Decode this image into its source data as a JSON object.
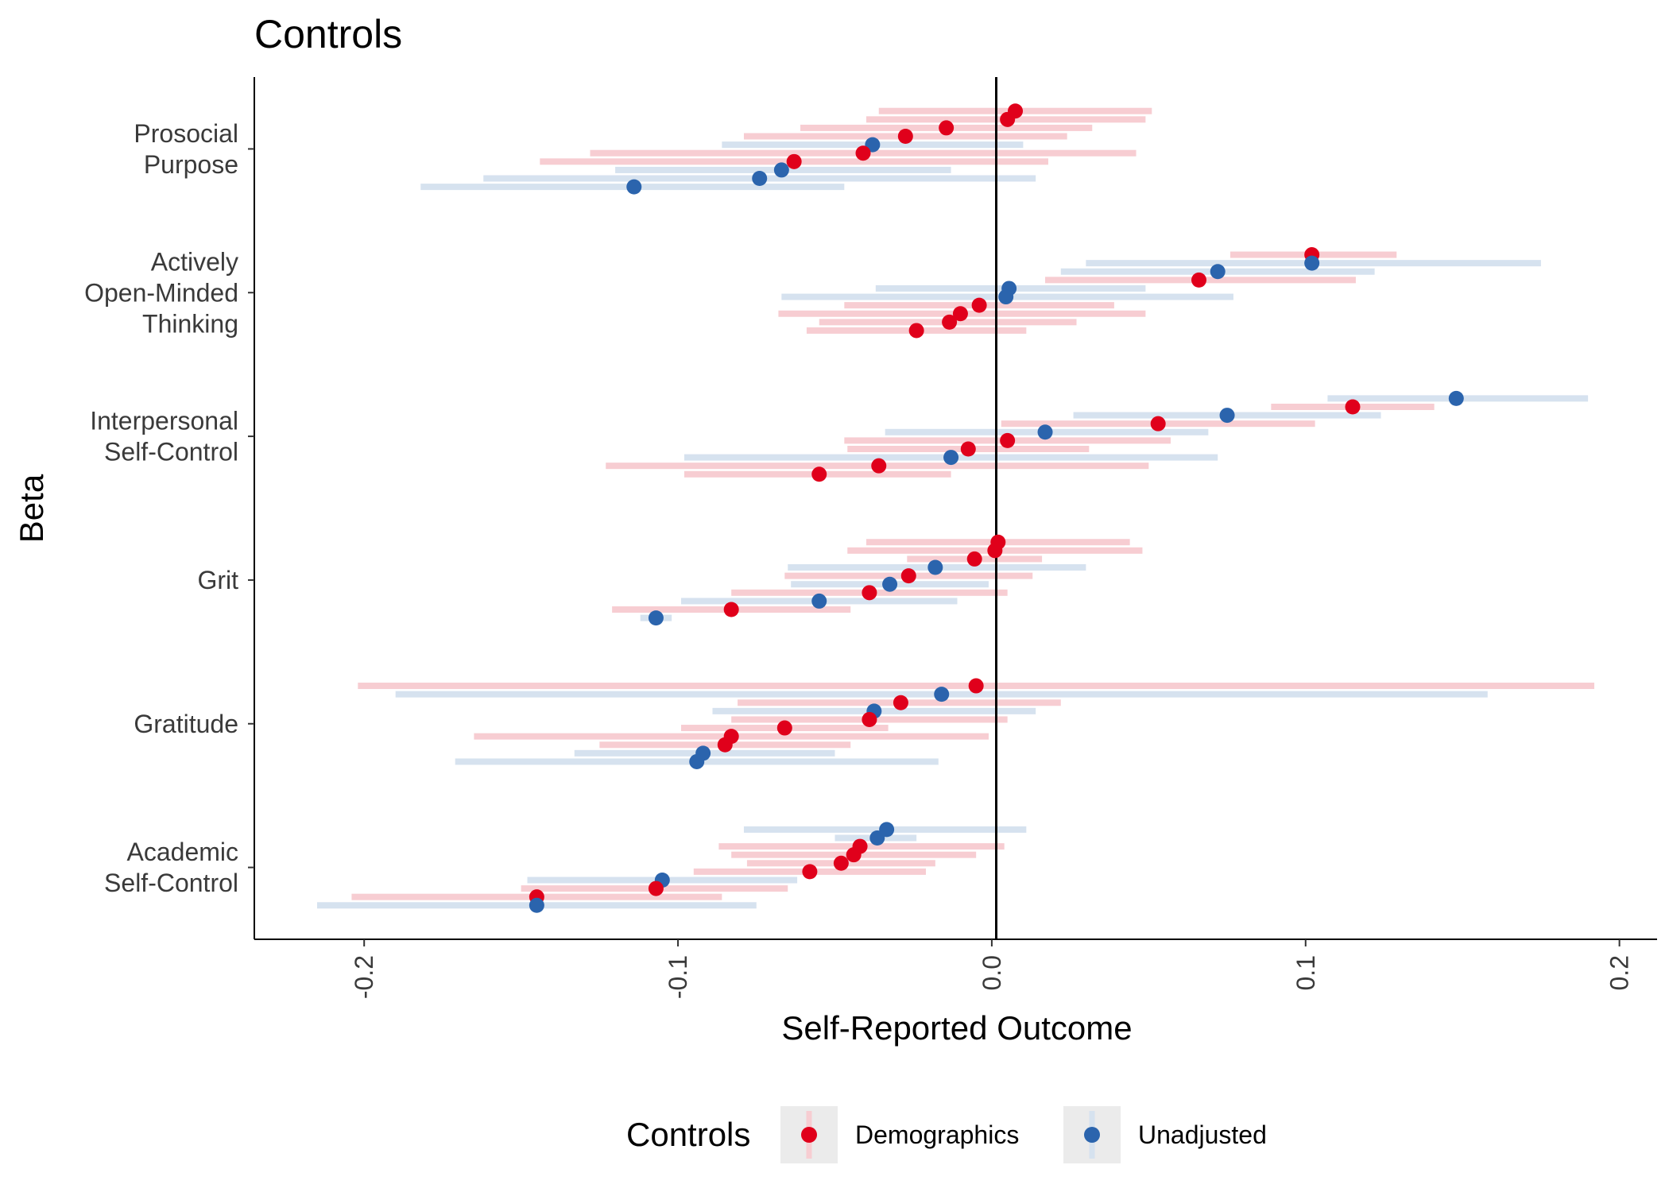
{
  "chart_data": {
    "type": "scatter",
    "title": "Controls",
    "xlabel": "Self-Reported Outcome",
    "ylabel": "Beta",
    "xlim": [
      -0.235,
      0.212
    ],
    "xticks": [
      -0.2,
      -0.1,
      0.0,
      0.1,
      0.2
    ],
    "xtick_labels": [
      "-0.2",
      "-0.1",
      "0.0",
      "0.1",
      "0.2"
    ],
    "reference_line_x": 0,
    "grid": false,
    "legend": {
      "title": "Controls",
      "placement": "bottom",
      "entries": [
        {
          "label": "Demographics",
          "point_color": "#e0001b",
          "bar_color": "#f7cdd2"
        },
        {
          "label": "Unadjusted",
          "point_color": "#2b64ad",
          "bar_color": "#d6e2ef"
        }
      ]
    },
    "categories": [
      {
        "label": [
          "Prosocial",
          "Purpose"
        ],
        "points": [
          {
            "series": "Demographics",
            "beta": 0.0075,
            "lo": -0.036,
            "hi": 0.051
          },
          {
            "series": "Demographics",
            "beta": 0.005,
            "lo": -0.04,
            "hi": 0.049
          },
          {
            "series": "Demographics",
            "beta": -0.0145,
            "lo": -0.061,
            "hi": 0.032
          },
          {
            "series": "Demographics",
            "beta": -0.0275,
            "lo": -0.079,
            "hi": 0.024
          },
          {
            "series": "Unadjusted",
            "beta": -0.038,
            "lo": -0.086,
            "hi": 0.01
          },
          {
            "series": "Demographics",
            "beta": -0.041,
            "lo": -0.128,
            "hi": 0.046
          },
          {
            "series": "Demographics",
            "beta": -0.063,
            "lo": -0.144,
            "hi": 0.018
          },
          {
            "series": "Unadjusted",
            "beta": -0.067,
            "lo": -0.12,
            "hi": -0.013
          },
          {
            "series": "Unadjusted",
            "beta": -0.074,
            "lo": -0.162,
            "hi": 0.014
          },
          {
            "series": "Unadjusted",
            "beta": -0.114,
            "lo": -0.182,
            "hi": -0.047
          }
        ]
      },
      {
        "label": [
          "Actively",
          "Open-Minded",
          "Thinking"
        ],
        "points": [
          {
            "series": "Demographics",
            "beta": 0.102,
            "lo": 0.076,
            "hi": 0.129
          },
          {
            "series": "Unadjusted",
            "beta": 0.102,
            "lo": 0.03,
            "hi": 0.175
          },
          {
            "series": "Unadjusted",
            "beta": 0.072,
            "lo": 0.022,
            "hi": 0.122
          },
          {
            "series": "Demographics",
            "beta": 0.066,
            "lo": 0.017,
            "hi": 0.116
          },
          {
            "series": "Unadjusted",
            "beta": 0.0055,
            "lo": -0.037,
            "hi": 0.049
          },
          {
            "series": "Unadjusted",
            "beta": 0.0045,
            "lo": -0.067,
            "hi": 0.077
          },
          {
            "series": "Demographics",
            "beta": -0.004,
            "lo": -0.047,
            "hi": 0.039
          },
          {
            "series": "Demographics",
            "beta": -0.01,
            "lo": -0.068,
            "hi": 0.049
          },
          {
            "series": "Demographics",
            "beta": -0.0135,
            "lo": -0.055,
            "hi": 0.027
          },
          {
            "series": "Demographics",
            "beta": -0.024,
            "lo": -0.059,
            "hi": 0.011
          }
        ]
      },
      {
        "label": [
          "Interpersonal",
          "Self-Control"
        ],
        "points": [
          {
            "series": "Unadjusted",
            "beta": 0.148,
            "lo": 0.107,
            "hi": 0.19
          },
          {
            "series": "Demographics",
            "beta": 0.115,
            "lo": 0.089,
            "hi": 0.141
          },
          {
            "series": "Unadjusted",
            "beta": 0.075,
            "lo": 0.026,
            "hi": 0.124
          },
          {
            "series": "Demographics",
            "beta": 0.053,
            "lo": 0.003,
            "hi": 0.103
          },
          {
            "series": "Unadjusted",
            "beta": 0.017,
            "lo": -0.034,
            "hi": 0.069
          },
          {
            "series": "Demographics",
            "beta": 0.005,
            "lo": -0.047,
            "hi": 0.057
          },
          {
            "series": "Demographics",
            "beta": -0.0075,
            "lo": -0.046,
            "hi": 0.031
          },
          {
            "series": "Unadjusted",
            "beta": -0.013,
            "lo": -0.098,
            "hi": 0.072
          },
          {
            "series": "Demographics",
            "beta": -0.036,
            "lo": -0.123,
            "hi": 0.05
          },
          {
            "series": "Demographics",
            "beta": -0.055,
            "lo": -0.098,
            "hi": -0.013
          }
        ]
      },
      {
        "label": [
          "Grit"
        ],
        "points": [
          {
            "series": "Demographics",
            "beta": 0.002,
            "lo": -0.04,
            "hi": 0.044
          },
          {
            "series": "Demographics",
            "beta": 0.001,
            "lo": -0.046,
            "hi": 0.048
          },
          {
            "series": "Demographics",
            "beta": -0.0055,
            "lo": -0.027,
            "hi": 0.016
          },
          {
            "series": "Unadjusted",
            "beta": -0.018,
            "lo": -0.065,
            "hi": 0.03
          },
          {
            "series": "Demographics",
            "beta": -0.0265,
            "lo": -0.066,
            "hi": 0.013
          },
          {
            "series": "Unadjusted",
            "beta": -0.0325,
            "lo": -0.064,
            "hi": -0.001
          },
          {
            "series": "Demographics",
            "beta": -0.039,
            "lo": -0.083,
            "hi": 0.005
          },
          {
            "series": "Unadjusted",
            "beta": -0.055,
            "lo": -0.099,
            "hi": -0.011
          },
          {
            "series": "Demographics",
            "beta": -0.083,
            "lo": -0.121,
            "hi": -0.045
          },
          {
            "series": "Unadjusted",
            "beta": -0.107,
            "lo": -0.112,
            "hi": -0.102
          }
        ]
      },
      {
        "label": [
          "Gratitude"
        ],
        "points": [
          {
            "series": "Demographics",
            "beta": -0.005,
            "lo": -0.202,
            "hi": 0.192
          },
          {
            "series": "Unadjusted",
            "beta": -0.016,
            "lo": -0.19,
            "hi": 0.158
          },
          {
            "series": "Demographics",
            "beta": -0.029,
            "lo": -0.081,
            "hi": 0.022
          },
          {
            "series": "Unadjusted",
            "beta": -0.0375,
            "lo": -0.089,
            "hi": 0.014
          },
          {
            "series": "Demographics",
            "beta": -0.039,
            "lo": -0.083,
            "hi": 0.005
          },
          {
            "series": "Demographics",
            "beta": -0.066,
            "lo": -0.099,
            "hi": -0.033
          },
          {
            "series": "Demographics",
            "beta": -0.083,
            "lo": -0.165,
            "hi": -0.001
          },
          {
            "series": "Demographics",
            "beta": -0.085,
            "lo": -0.125,
            "hi": -0.045
          },
          {
            "series": "Unadjusted",
            "beta": -0.092,
            "lo": -0.133,
            "hi": -0.05
          },
          {
            "series": "Unadjusted",
            "beta": -0.094,
            "lo": -0.171,
            "hi": -0.017
          }
        ]
      },
      {
        "label": [
          "Academic",
          "Self-Control"
        ],
        "points": [
          {
            "series": "Unadjusted",
            "beta": -0.0335,
            "lo": -0.079,
            "hi": 0.011
          },
          {
            "series": "Unadjusted",
            "beta": -0.0365,
            "lo": -0.05,
            "hi": -0.024
          },
          {
            "series": "Demographics",
            "beta": -0.042,
            "lo": -0.087,
            "hi": 0.004
          },
          {
            "series": "Demographics",
            "beta": -0.044,
            "lo": -0.083,
            "hi": -0.005
          },
          {
            "series": "Demographics",
            "beta": -0.048,
            "lo": -0.078,
            "hi": -0.018
          },
          {
            "series": "Demographics",
            "beta": -0.058,
            "lo": -0.095,
            "hi": -0.021
          },
          {
            "series": "Unadjusted",
            "beta": -0.105,
            "lo": -0.148,
            "hi": -0.062
          },
          {
            "series": "Demographics",
            "beta": -0.107,
            "lo": -0.15,
            "hi": -0.065
          },
          {
            "series": "Demographics",
            "beta": -0.145,
            "lo": -0.204,
            "hi": -0.086
          },
          {
            "series": "Unadjusted",
            "beta": -0.145,
            "lo": -0.215,
            "hi": -0.075
          }
        ]
      }
    ]
  }
}
